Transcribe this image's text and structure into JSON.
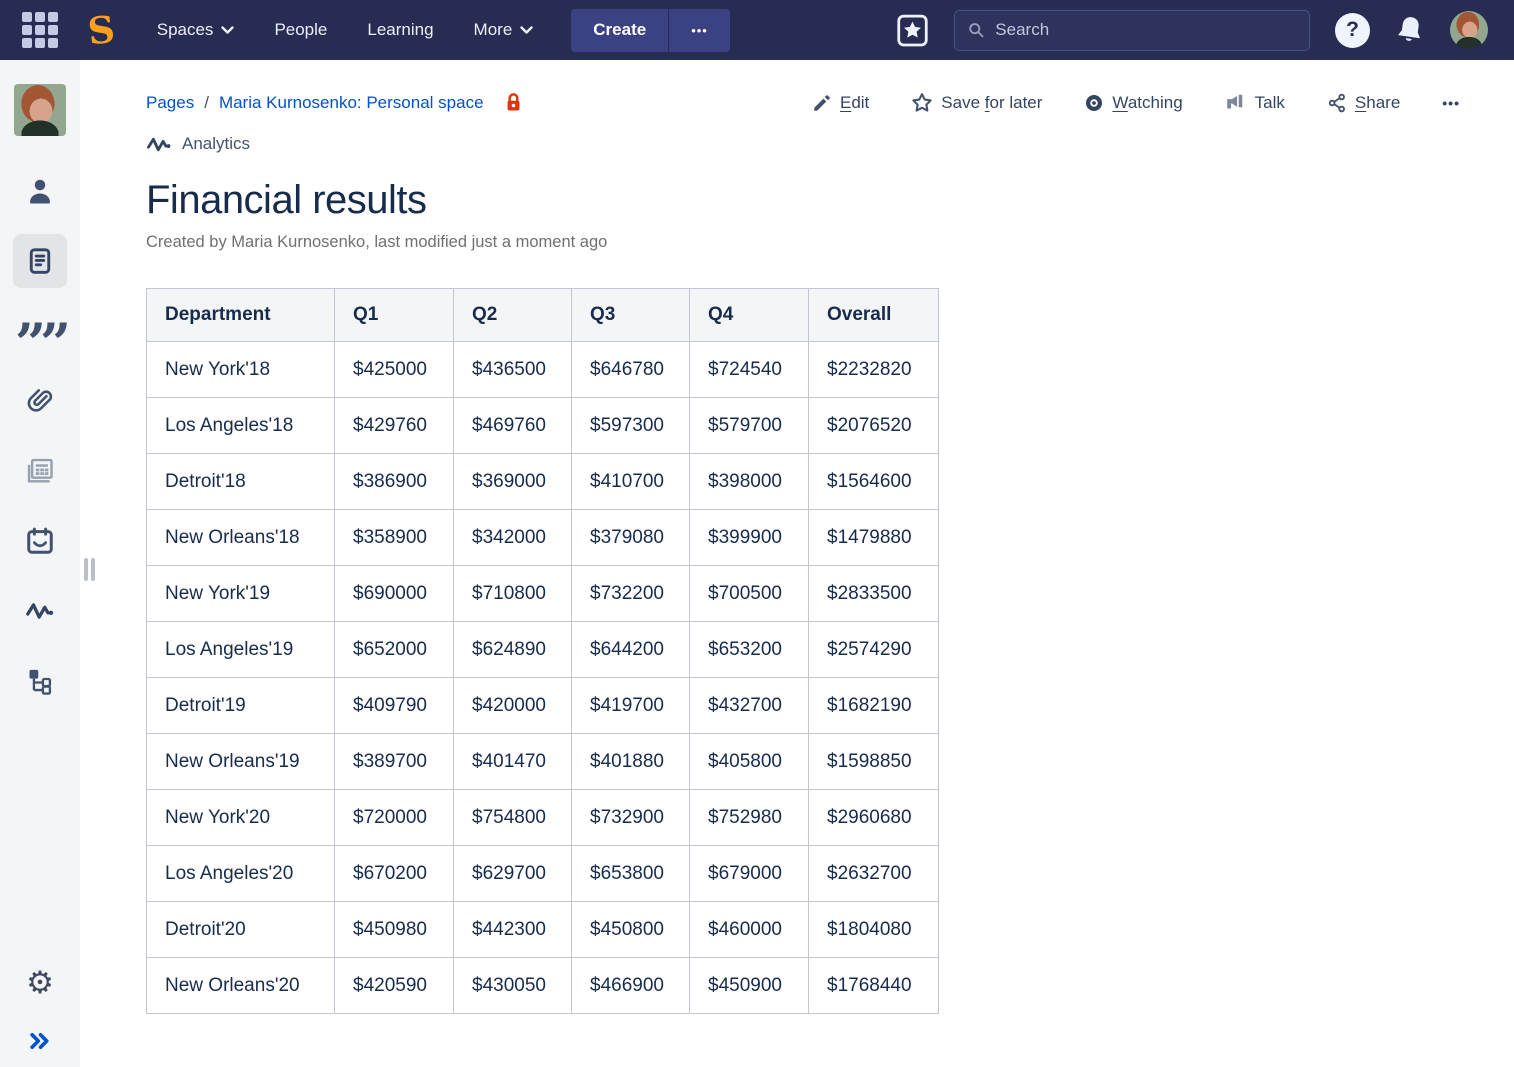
{
  "topbar": {
    "logo": "S",
    "menu": [
      "Spaces",
      "People",
      "Learning",
      "More"
    ],
    "create_label": "Create",
    "search_placeholder": "Search"
  },
  "icons": {
    "help_glyph": "?",
    "ellipsis_glyph": "•••",
    "quote_glyph": "””",
    "gear_glyph": "⚙"
  },
  "breadcrumb": {
    "items": [
      "Pages",
      "Maria Kurnosenko: Personal space"
    ],
    "separator": "/"
  },
  "actions": {
    "edit": {
      "pre": "",
      "key": "E",
      "post": "dit"
    },
    "save_for_later": {
      "pre": "Save ",
      "key": "f",
      "post": "or later"
    },
    "watching": {
      "pre": "",
      "key": "W",
      "post": "atching"
    },
    "talk": {
      "label": "Talk"
    },
    "share": {
      "pre": "",
      "key": "S",
      "post": "hare"
    }
  },
  "shortcuts": {
    "analytics_label": "Analytics"
  },
  "page": {
    "title": "Financial results",
    "byline": "Created by Maria Kurnosenko, last modified just a moment ago"
  },
  "table": {
    "headers": [
      "Department",
      "Q1",
      "Q2",
      "Q3",
      "Q4",
      "Overall"
    ],
    "rows": [
      [
        "New York'18",
        "$425000",
        "$436500",
        "$646780",
        "$724540",
        "$2232820"
      ],
      [
        "Los Angeles'18",
        "$429760",
        "$469760",
        "$597300",
        "$579700",
        "$2076520"
      ],
      [
        "Detroit'18",
        "$386900",
        "$369000",
        "$410700",
        "$398000",
        "$1564600"
      ],
      [
        "New Orleans'18",
        "$358900",
        "$342000",
        "$379080",
        "$399900",
        "$1479880"
      ],
      [
        "New York'19",
        "$690000",
        "$710800",
        "$732200",
        "$700500",
        "$2833500"
      ],
      [
        "Los Angeles'19",
        "$652000",
        "$624890",
        "$644200",
        "$653200",
        "$2574290"
      ],
      [
        "Detroit'19",
        "$409790",
        "$420000",
        "$419700",
        "$432700",
        "$1682190"
      ],
      [
        "New Orleans'19",
        "$389700",
        "$401470",
        "$401880",
        "$405800",
        "$1598850"
      ],
      [
        "New York'20",
        "$720000",
        "$754800",
        "$732900",
        "$752980",
        "$2960680"
      ],
      [
        "Los Angeles'20",
        "$670200",
        "$629700",
        "$653800",
        "$679000",
        "$2632700"
      ],
      [
        "Detroit'20",
        "$450980",
        "$442300",
        "$450800",
        "$460000",
        "$1804080"
      ],
      [
        "New Orleans'20",
        "$420590",
        "$430050",
        "$466900",
        "$450900",
        "$1768440"
      ]
    ]
  },
  "colors": {
    "nav_bg": "#272C52",
    "logo_orange": "#FFA01C",
    "accent_blue": "#0052CC",
    "lock_red": "#DE350B",
    "text_dark": "#172B4D",
    "text_gray": "#707070",
    "table_border": "#C1C7D0",
    "table_header_bg": "#F4F5F7",
    "sidebar_bg": "#F4F5F7"
  }
}
